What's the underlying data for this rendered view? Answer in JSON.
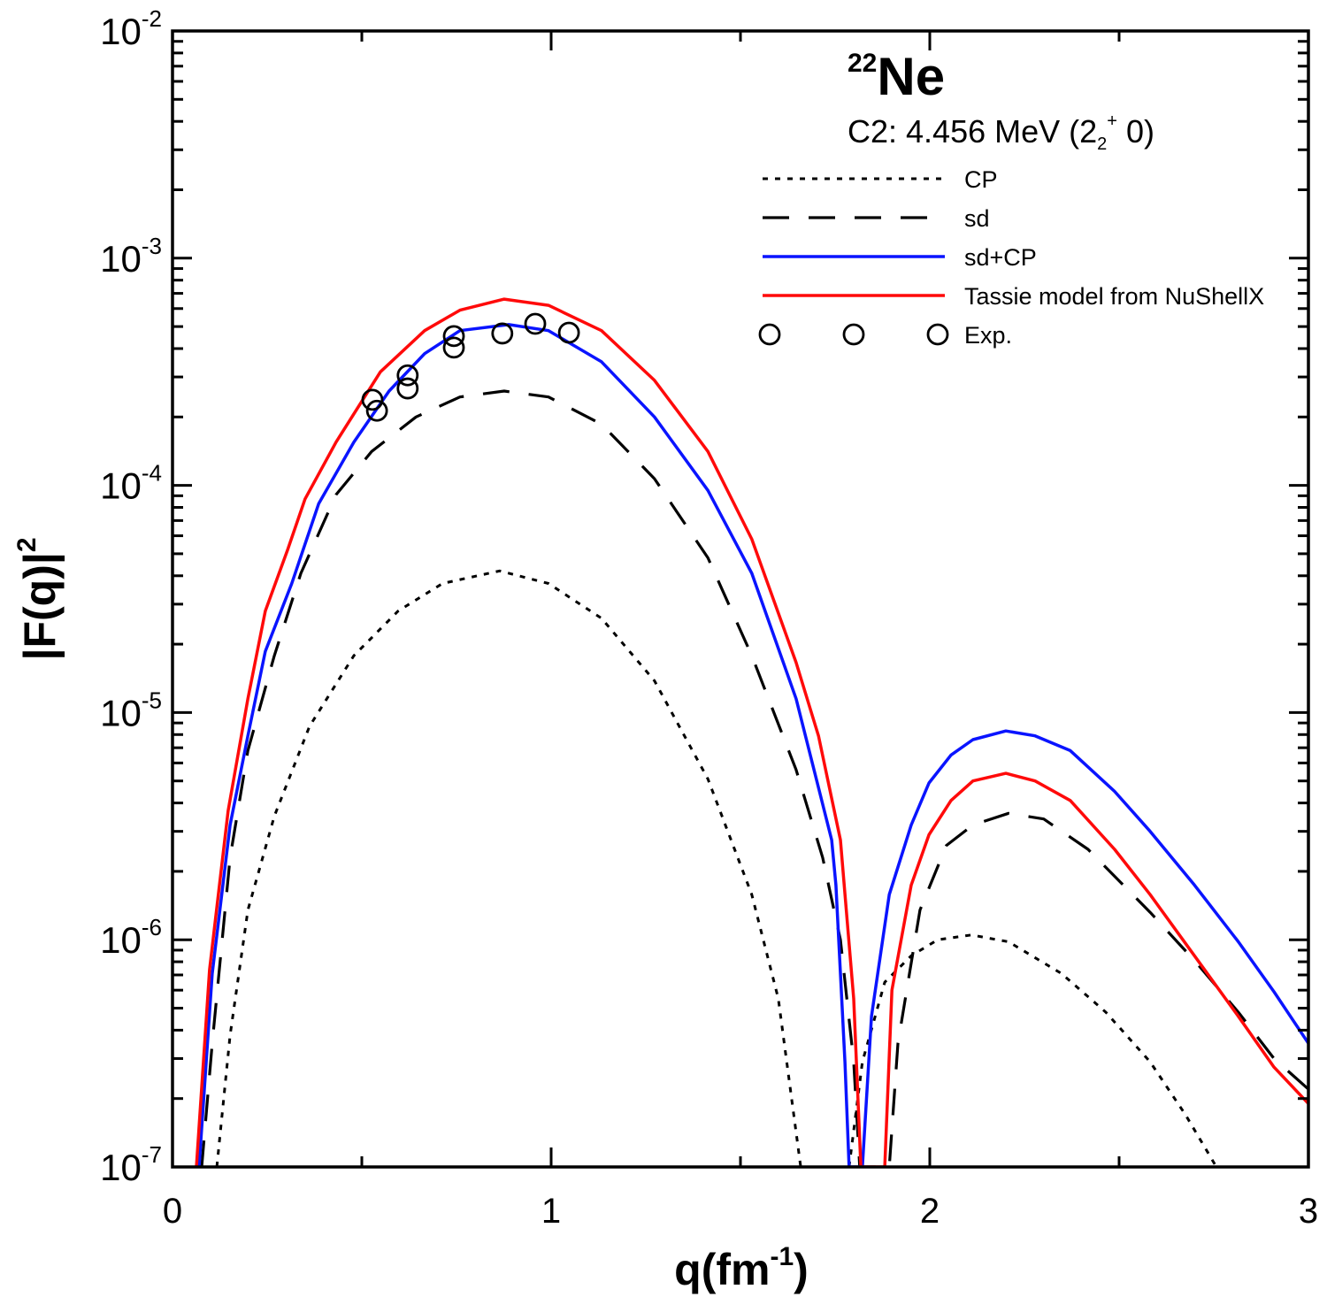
{
  "chart_data": {
    "type": "line",
    "title": {
      "mass": "22",
      "symbol": "Ne"
    },
    "subtitle": {
      "pre": "C2:  4.456 MeV (2",
      "sub": "2",
      "sup": "+",
      "post": " 0)"
    },
    "xlabel": {
      "main": "q(fm",
      "sup": "-1",
      "post": ")"
    },
    "ylabel": {
      "main": "|F(q)|",
      "sup": "2"
    },
    "xlim": [
      0,
      3
    ],
    "ylim": [
      1e-07,
      0.01
    ],
    "yscale": "log",
    "grid": false,
    "legend_position": "top-right",
    "x_ticks": [
      {
        "value": 0,
        "label": "0"
      },
      {
        "value": 1,
        "label": "1"
      },
      {
        "value": 2,
        "label": "2"
      },
      {
        "value": 3,
        "label": "3"
      }
    ],
    "y_ticks": [
      {
        "value": 0.01,
        "base": "10",
        "exp": "-2"
      },
      {
        "value": 0.001,
        "base": "10",
        "exp": "-3"
      },
      {
        "value": 0.0001,
        "base": "10",
        "exp": "-4"
      },
      {
        "value": 1e-05,
        "base": "10",
        "exp": "-5"
      },
      {
        "value": 1e-06,
        "base": "10",
        "exp": "-6"
      },
      {
        "value": 1e-07,
        "base": "10",
        "exp": "-7"
      }
    ],
    "series": [
      {
        "name": "CP",
        "style": "dotted",
        "color": "#000000",
        "x": [
          0.117,
          0.152,
          0.199,
          0.269,
          0.362,
          0.479,
          0.596,
          0.713,
          0.864,
          0.993,
          1.133,
          1.273,
          1.414,
          1.53,
          1.6,
          1.659,
          null,
          1.787,
          1.822,
          1.881,
          1.951,
          2.021,
          2.11,
          2.208,
          2.348,
          2.465,
          2.582,
          2.675,
          2.757
        ],
        "y": [
          1e-07,
          3.8e-07,
          1.35e-06,
          3.5e-06,
          8.7e-06,
          1.78e-05,
          2.8e-05,
          3.7e-05,
          4.2e-05,
          3.7e-05,
          2.6e-05,
          1.38e-05,
          5.1e-06,
          1.58e-06,
          5.5e-07,
          1e-07,
          null,
          1e-07,
          2.9e-07,
          6.5e-07,
          8.5e-07,
          1e-06,
          1.05e-06,
          9.8e-07,
          7.1e-07,
          4.8e-07,
          2.9e-07,
          1.7e-07,
          1e-07
        ]
      },
      {
        "name": "sd",
        "style": "dashed",
        "color": "#000000",
        "x": [
          0.077,
          0.105,
          0.152,
          0.199,
          0.269,
          0.339,
          0.432,
          0.526,
          0.643,
          0.759,
          0.876,
          0.993,
          1.133,
          1.273,
          1.414,
          1.53,
          1.647,
          1.717,
          1.764,
          1.799,
          1.815,
          1.893,
          1.916,
          1.974,
          2.044,
          2.114,
          2.208,
          2.301,
          2.418,
          2.582,
          2.699,
          2.815,
          2.909,
          3.0
        ],
        "y": [
          1e-07,
          3.5e-07,
          2.3e-06,
          6.8e-06,
          1.78e-05,
          4.1e-05,
          9.1e-05,
          0.000141,
          0.0002,
          0.000245,
          0.00026,
          0.000245,
          0.000186,
          0.000107,
          4.8e-05,
          1.78e-05,
          5.6e-06,
          2.3e-06,
          1e-06,
          2.9e-07,
          1e-07,
          1e-07,
          3.5e-07,
          1.35e-06,
          2.6e-06,
          3.2e-06,
          3.6e-06,
          3.4e-06,
          2.5e-06,
          1.32e-06,
          8.1e-07,
          4.8e-07,
          3e-07,
          2.2e-07
        ]
      },
      {
        "name": "sd+CP",
        "style": "solid",
        "color": "#0a14ff",
        "x": [
          0.07,
          0.105,
          0.152,
          0.199,
          0.245,
          0.315,
          0.386,
          0.479,
          0.572,
          0.666,
          0.759,
          0.888,
          0.993,
          1.133,
          1.273,
          1.414,
          1.53,
          1.647,
          1.741,
          1.752,
          1.776,
          1.787,
          1.822,
          1.846,
          1.893,
          1.951,
          1.998,
          2.056,
          2.114,
          2.201,
          2.278,
          2.371,
          2.488,
          2.582,
          2.699,
          2.815,
          2.909,
          3.0
        ],
        "y": [
          1e-07,
          7.1e-07,
          3.2e-06,
          7.9e-06,
          1.86e-05,
          3.7e-05,
          8.3e-05,
          0.000155,
          0.00026,
          0.00038,
          0.00048,
          0.00051,
          0.00048,
          0.00035,
          0.0002,
          9.5e-05,
          4.1e-05,
          1.15e-05,
          2.75e-06,
          1.74e-06,
          2.9e-07,
          1e-07,
          1e-07,
          4.6e-07,
          1.58e-06,
          3.2e-06,
          4.9e-06,
          6.5e-06,
          7.6e-06,
          8.3e-06,
          7.9e-06,
          6.8e-06,
          4.5e-06,
          3e-06,
          1.74e-06,
          9.8e-07,
          5.9e-07,
          3.5e-07
        ]
      },
      {
        "name": "Tassie model from NuShellX",
        "style": "solid",
        "color": "#ff0a0a",
        "x": [
          0.063,
          0.098,
          0.147,
          0.199,
          0.245,
          0.304,
          0.35,
          0.432,
          0.549,
          0.666,
          0.759,
          0.876,
          0.993,
          1.133,
          1.273,
          1.414,
          1.53,
          1.647,
          1.706,
          1.764,
          1.799,
          1.818,
          1.881,
          1.9,
          1.951,
          1.998,
          2.056,
          2.114,
          2.201,
          2.278,
          2.371,
          2.488,
          2.582,
          2.699,
          2.815,
          2.909,
          3.0
        ],
        "y": [
          1e-07,
          7.4e-07,
          3.7e-06,
          1.15e-05,
          2.8e-05,
          5.2e-05,
          8.7e-05,
          0.000155,
          0.000316,
          0.00048,
          0.00059,
          0.00066,
          0.00062,
          0.00048,
          0.00029,
          0.000141,
          5.8e-05,
          1.66e-05,
          7.9e-06,
          2.75e-06,
          5.5e-07,
          1e-07,
          1e-07,
          6e-07,
          1.74e-06,
          2.9e-06,
          4.1e-06,
          5e-06,
          5.4e-06,
          5e-06,
          4.1e-06,
          2.5e-06,
          1.58e-06,
          8.5e-07,
          4.6e-07,
          2.75e-07,
          1.9e-07
        ]
      },
      {
        "name": "Exp.",
        "style": "markers",
        "marker": "open-circle",
        "color": "#000000",
        "x": [
          0.528,
          0.54,
          0.621,
          0.621,
          0.743,
          0.743,
          0.871,
          0.958,
          1.047
        ],
        "y": [
          0.000238,
          0.000213,
          0.000305,
          0.000267,
          0.000454,
          0.000404,
          0.000466,
          0.000514,
          0.00047
        ]
      }
    ]
  }
}
